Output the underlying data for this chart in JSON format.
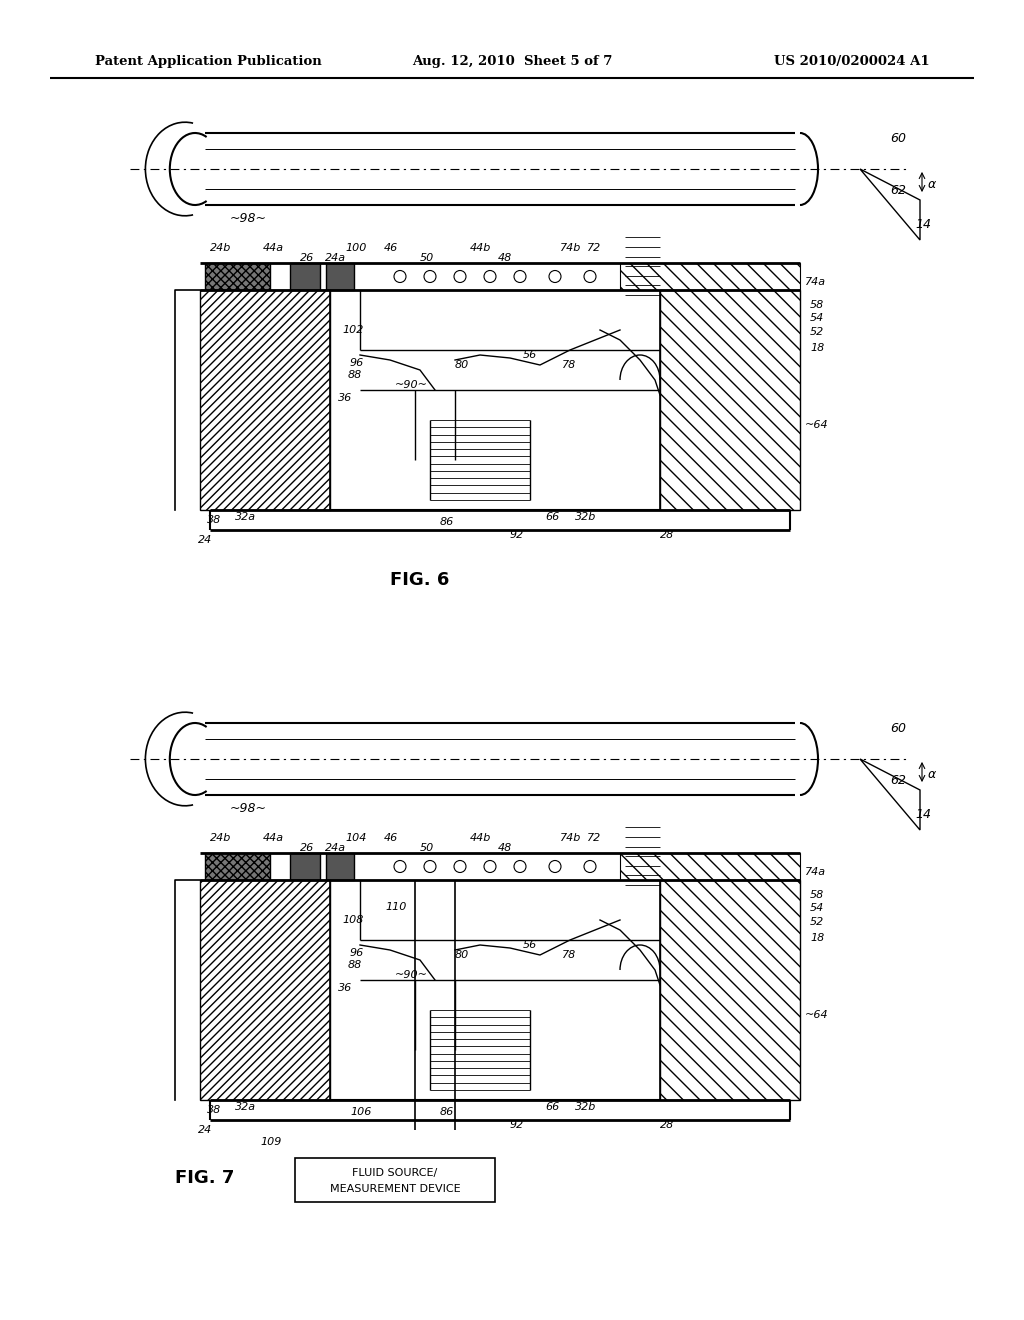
{
  "header_left": "Patent Application Publication",
  "header_center": "Aug. 12, 2010  Sheet 5 of 7",
  "header_right": "US 2010/0200024 A1",
  "fig6_label": "FIG. 6",
  "fig7_label": "FIG. 7",
  "bg": "#ffffff",
  "lc": "#000000"
}
